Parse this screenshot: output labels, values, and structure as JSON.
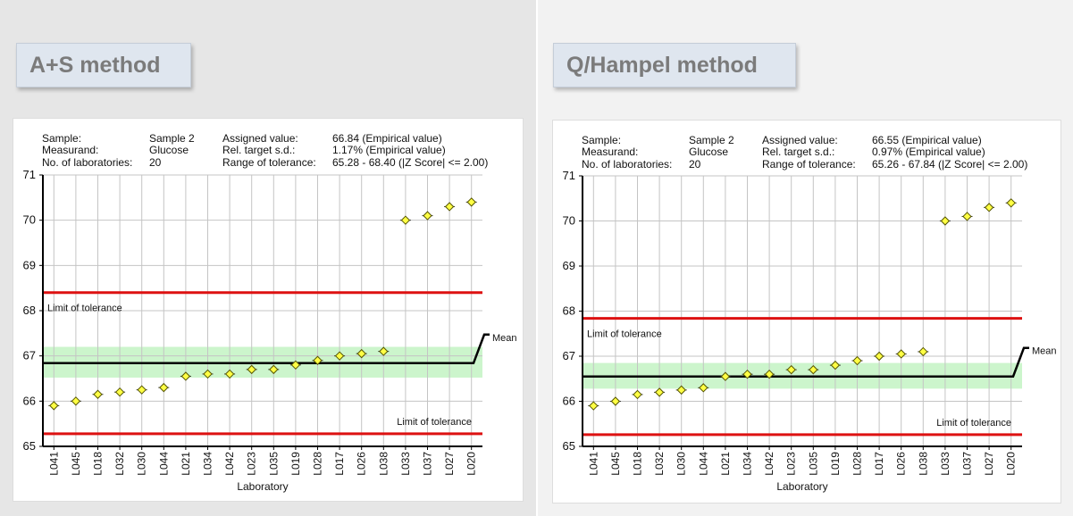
{
  "panels": [
    {
      "title": "A+S method",
      "info": {
        "sample_label": "Sample:",
        "sample_value": "Sample 2",
        "measurand_label": "Measurand:",
        "measurand_value": "Glucose",
        "labs_label": "No. of laboratories:",
        "labs_value": "20",
        "assigned_label": "Assigned value:",
        "assigned_value": "66.84  (Empirical value)",
        "target_label": "Rel. target s.d.:",
        "target_value": "1.17% (Empirical value)",
        "range_label": "Range of tolerance:",
        "range_value": "65.28 - 68.40  (|Z Score| <= 2.00)"
      }
    },
    {
      "title": "Q/Hampel method",
      "info": {
        "sample_label": "Sample:",
        "sample_value": "Sample 2",
        "measurand_label": "Measurand:",
        "measurand_value": "Glucose",
        "labs_label": "No. of laboratories:",
        "labs_value": "20",
        "assigned_label": "Assigned value:",
        "assigned_value": "66.55  (Empirical value)",
        "target_label": "Rel. target s.d.:",
        "target_value": "0.97% (Empirical value)",
        "range_label": "Range of tolerance:",
        "range_value": "65.26 - 67.84  (|Z Score| <= 2.00)"
      }
    }
  ],
  "chart_data": [
    {
      "type": "scatter",
      "xlabel": "Laboratory",
      "ylim": [
        65,
        71
      ],
      "yticks": [
        65,
        66,
        67,
        68,
        69,
        70,
        71
      ],
      "grid": true,
      "categories": [
        "L041",
        "L045",
        "L018",
        "L032",
        "L030",
        "L044",
        "L021",
        "L034",
        "L042",
        "L023",
        "L035",
        "L019",
        "L028",
        "L017",
        "L026",
        "L038",
        "L033",
        "L037",
        "L027",
        "L020"
      ],
      "values": [
        65.9,
        66.0,
        66.15,
        66.2,
        66.25,
        66.3,
        66.55,
        66.6,
        66.6,
        66.7,
        66.7,
        66.8,
        66.9,
        67.0,
        67.05,
        67.1,
        70.0,
        70.1,
        70.3,
        70.4
      ],
      "mean": 66.84,
      "mean_label": "Mean",
      "band": [
        66.52,
        67.2
      ],
      "upper_limit": 68.4,
      "lower_limit": 65.28,
      "upper_limit_label": "Limit of tolerance",
      "lower_limit_label": "Limit of tolerance",
      "colors": {
        "limit": "#dd1111",
        "band": "#ccf5cc",
        "mean": "#000000",
        "marker_fill": "#ffff44",
        "marker_stroke": "#555500"
      }
    },
    {
      "type": "scatter",
      "xlabel": "Laboratory",
      "ylim": [
        65,
        71
      ],
      "yticks": [
        65,
        66,
        67,
        68,
        69,
        70,
        71
      ],
      "grid": true,
      "categories": [
        "L041",
        "L045",
        "L018",
        "L032",
        "L030",
        "L044",
        "L021",
        "L034",
        "L042",
        "L023",
        "L035",
        "L019",
        "L028",
        "L017",
        "L026",
        "L038",
        "L033",
        "L037",
        "L027",
        "L020"
      ],
      "values": [
        65.9,
        66.0,
        66.15,
        66.2,
        66.25,
        66.3,
        66.55,
        66.6,
        66.6,
        66.7,
        66.7,
        66.8,
        66.9,
        67.0,
        67.05,
        67.1,
        70.0,
        70.1,
        70.3,
        70.4
      ],
      "mean": 66.55,
      "mean_label": "Mean",
      "band": [
        66.28,
        66.85
      ],
      "upper_limit": 67.84,
      "lower_limit": 65.26,
      "upper_limit_label": "Limit of tolerance",
      "lower_limit_label": "Limit of tolerance",
      "colors": {
        "limit": "#dd1111",
        "band": "#ccf5cc",
        "mean": "#000000",
        "marker_fill": "#ffff44",
        "marker_stroke": "#555500"
      }
    }
  ]
}
